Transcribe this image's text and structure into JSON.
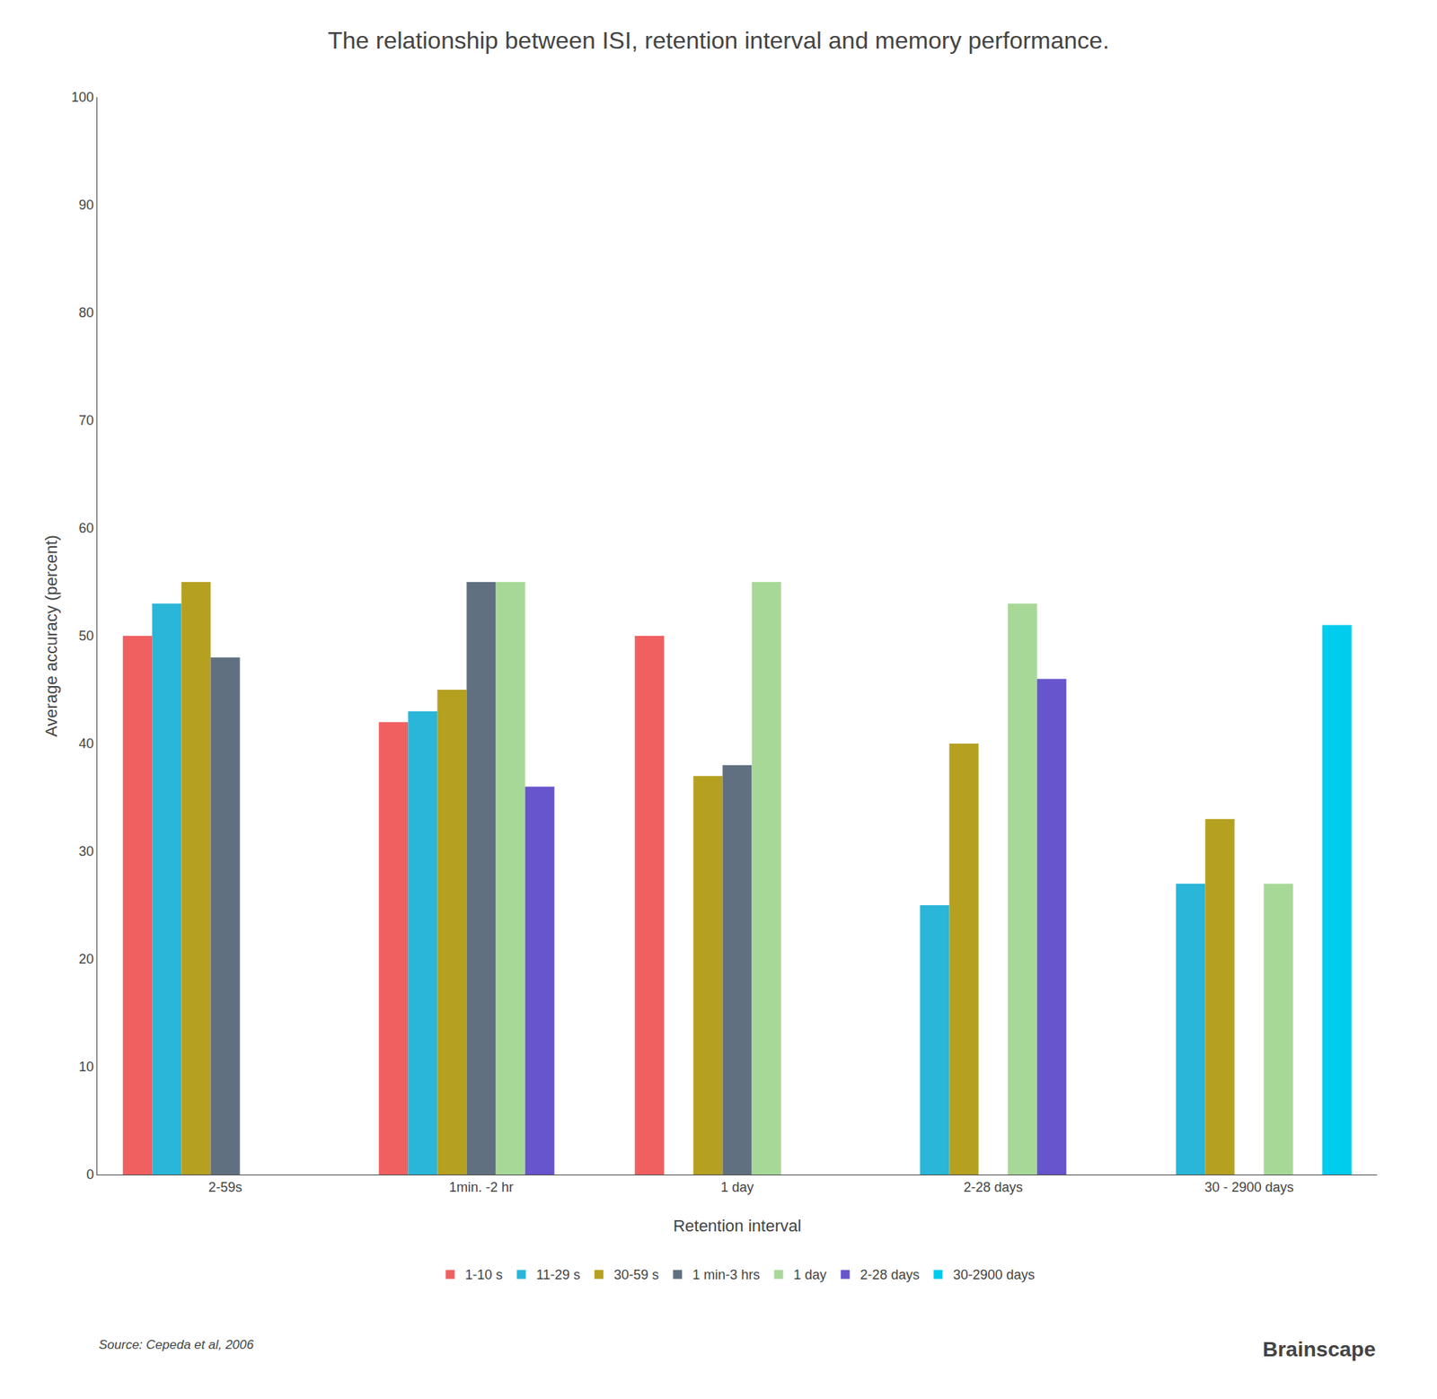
{
  "chart_data": {
    "type": "bar",
    "title": "The relationship between ISI, retention interval and memory performance.",
    "xlabel": "Retention interval",
    "ylabel": "Average accuracy (percent)",
    "categories": [
      "2-59s",
      "1min. -2 hr",
      "1 day",
      "2-28 days",
      "30 - 2900 days"
    ],
    "series": [
      {
        "name": "1-10 s",
        "color": "#f06060",
        "values": [
          50,
          42,
          50,
          null,
          null
        ]
      },
      {
        "name": "11-29 s",
        "color": "#29b6d8",
        "values": [
          53,
          43,
          null,
          25,
          27
        ]
      },
      {
        "name": "30-59 s",
        "color": "#b5a020",
        "values": [
          55,
          45,
          37,
          40,
          33
        ]
      },
      {
        "name": "1 min-3 hrs",
        "color": "#607080",
        "values": [
          48,
          55,
          38,
          null,
          null
        ]
      },
      {
        "name": "1 day",
        "color": "#a8d898",
        "values": [
          null,
          55,
          55,
          53,
          27
        ]
      },
      {
        "name": "2-28 days",
        "color": "#6655cc",
        "values": [
          null,
          36,
          null,
          46,
          null
        ]
      },
      {
        "name": "30-2900 days",
        "color": "#00ccee",
        "values": [
          null,
          null,
          null,
          null,
          51
        ]
      }
    ],
    "ylim": [
      0,
      100
    ],
    "yticks": [
      0,
      10,
      20,
      30,
      40,
      50,
      60,
      70,
      80,
      90,
      100
    ],
    "grid": false,
    "legend": "bottom",
    "annotations": [
      "Source: Cepeda et al, 2006",
      "Brainscape"
    ]
  }
}
